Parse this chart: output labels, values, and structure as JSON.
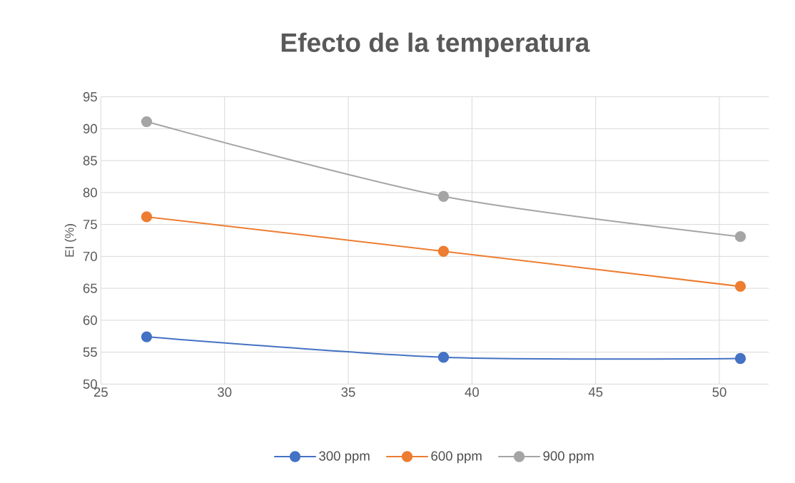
{
  "chart_data": {
    "type": "line",
    "title": "Efecto de la temperatura",
    "ylabel": "EI (%)",
    "xlim": [
      25,
      52
    ],
    "xticks": [
      25,
      30,
      35,
      40,
      45,
      50
    ],
    "ylim": [
      50,
      95
    ],
    "yticks": [
      50,
      55,
      60,
      65,
      70,
      75,
      80,
      85,
      90,
      95
    ],
    "grid": true,
    "legend": "bottom",
    "marker": "circle",
    "series": [
      {
        "name": "300 ppm",
        "color": "#4472c4",
        "x": [
          26.85,
          38.85,
          50.85
        ],
        "values": [
          57.4,
          54.2,
          54.0
        ]
      },
      {
        "name": "600 ppm",
        "color": "#ed7d31",
        "x": [
          26.85,
          38.85,
          50.85
        ],
        "values": [
          76.2,
          70.8,
          65.3
        ]
      },
      {
        "name": "900 ppm",
        "color": "#a5a5a5",
        "x": [
          26.85,
          38.85,
          50.85
        ],
        "values": [
          91.1,
          79.4,
          73.1
        ]
      }
    ]
  }
}
